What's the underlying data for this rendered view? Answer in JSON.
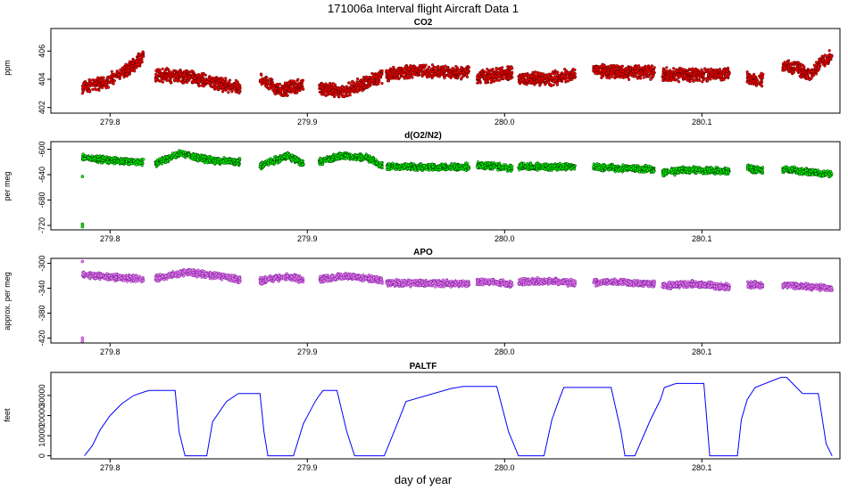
{
  "figure": {
    "title": "171006a   Interval flight Aircraft Data 1",
    "xlabel": "day of year"
  },
  "chart_data": [
    {
      "type": "scatter",
      "title": "CO2",
      "ylabel": "ppm",
      "xlim": [
        279.77,
        280.17
      ],
      "ylim": [
        401.6,
        407.6
      ],
      "yticks": [
        402,
        404,
        406
      ],
      "xticks": [
        279.8,
        279.9,
        280.0,
        280.1
      ],
      "xticklabels": [
        "279.8",
        "279.9",
        "280.0",
        "280.1"
      ],
      "grid": false,
      "colors": {
        "fill": "#ff0000",
        "edge": "#550000"
      },
      "segments": [
        {
          "x": [
            279.786,
            279.798,
            279.808,
            279.817
          ],
          "y": [
            403.5,
            403.8,
            404.6,
            405.6
          ]
        },
        {
          "x": [
            279.823,
            279.84,
            279.858,
            279.866
          ],
          "y": [
            404.3,
            404.2,
            403.6,
            403.4
          ]
        },
        {
          "x": [
            279.876,
            279.886,
            279.898
          ],
          "y": [
            404.0,
            403.2,
            403.6
          ]
        },
        {
          "x": [
            279.906,
            279.918,
            279.93,
            279.938
          ],
          "y": [
            403.4,
            403.1,
            403.8,
            404.2
          ]
        },
        {
          "x": [
            279.94,
            279.955,
            279.97,
            279.982
          ],
          "y": [
            404.3,
            404.6,
            404.5,
            404.5
          ]
        },
        {
          "x": [
            279.986,
            279.996,
            280.004
          ],
          "y": [
            404.1,
            404.3,
            404.5
          ]
        },
        {
          "x": [
            280.007,
            280.02,
            280.036
          ],
          "y": [
            404.1,
            404.0,
            404.3
          ]
        },
        {
          "x": [
            280.045,
            280.06,
            280.076
          ],
          "y": [
            404.6,
            404.5,
            404.5
          ]
        },
        {
          "x": [
            280.08,
            280.1,
            280.114
          ],
          "y": [
            404.3,
            404.3,
            404.4
          ]
        },
        {
          "x": [
            280.123,
            280.127,
            280.131
          ],
          "y": [
            404.1,
            403.9,
            404.0
          ]
        },
        {
          "x": [
            280.141,
            280.148,
            280.155,
            280.16,
            280.166
          ],
          "y": [
            404.9,
            404.8,
            404.2,
            405.2,
            405.7
          ]
        }
      ]
    },
    {
      "type": "scatter",
      "title": "d(O2/N2)",
      "ylabel": "per meg",
      "xlim": [
        279.77,
        280.17
      ],
      "ylim": [
        -727,
        -588
      ],
      "yticks": [
        -600,
        -640,
        -680,
        -720
      ],
      "xticks": [
        279.8,
        279.9,
        280.0,
        280.1
      ],
      "xticklabels": [
        "279.8",
        "279.9",
        "280.0",
        "280.1"
      ],
      "grid": false,
      "colors": {
        "fill": "#00ff00",
        "edge": "#003300"
      },
      "outliers": [
        {
          "x": 279.786,
          "y": -643
        },
        {
          "x": 279.786,
          "y": -718
        },
        {
          "x": 279.786,
          "y": -722
        }
      ],
      "segments": [
        {
          "x": [
            279.786,
            279.8,
            279.817
          ],
          "y": [
            -613,
            -617,
            -621
          ]
        },
        {
          "x": [
            279.823,
            279.836,
            279.85,
            279.866
          ],
          "y": [
            -623,
            -606,
            -617,
            -620
          ]
        },
        {
          "x": [
            279.876,
            279.89,
            279.898
          ],
          "y": [
            -626,
            -610,
            -623
          ]
        },
        {
          "x": [
            279.906,
            279.918,
            279.93,
            279.938
          ],
          "y": [
            -620,
            -610,
            -613,
            -626
          ]
        },
        {
          "x": [
            279.94,
            279.96,
            279.982
          ],
          "y": [
            -627,
            -628,
            -628
          ]
        },
        {
          "x": [
            279.986,
            279.995,
            280.004
          ],
          "y": [
            -625,
            -627,
            -630
          ]
        },
        {
          "x": [
            280.007,
            280.022,
            280.036
          ],
          "y": [
            -627,
            -628,
            -627
          ]
        },
        {
          "x": [
            280.045,
            280.06,
            280.076
          ],
          "y": [
            -628,
            -630,
            -632
          ]
        },
        {
          "x": [
            280.08,
            280.095,
            280.114
          ],
          "y": [
            -637,
            -632,
            -635
          ]
        },
        {
          "x": [
            280.123,
            280.127,
            280.131
          ],
          "y": [
            -630,
            -632,
            -633
          ]
        },
        {
          "x": [
            280.141,
            280.152,
            280.166
          ],
          "y": [
            -632,
            -634,
            -640
          ]
        }
      ]
    },
    {
      "type": "scatter",
      "title": "APO",
      "ylabel": "approx. per meg",
      "xlim": [
        279.77,
        280.17
      ],
      "ylim": [
        -428,
        -292
      ],
      "yticks": [
        -300,
        -340,
        -380,
        -420
      ],
      "xticks": [
        279.8,
        279.9,
        280.0,
        280.1
      ],
      "xticklabels": [
        "279.8",
        "279.9",
        "280.0",
        "280.1"
      ],
      "grid": false,
      "colors": {
        "fill": "#ee82ee",
        "edge": "#7a1fa0"
      },
      "outliers": [
        {
          "x": 279.786,
          "y": -297
        },
        {
          "x": 279.786,
          "y": -420
        },
        {
          "x": 279.786,
          "y": -425
        }
      ],
      "segments": [
        {
          "x": [
            279.786,
            279.8,
            279.817
          ],
          "y": [
            -318,
            -322,
            -325
          ]
        },
        {
          "x": [
            279.823,
            279.838,
            279.855,
            279.866
          ],
          "y": [
            -324,
            -314,
            -320,
            -326
          ]
        },
        {
          "x": [
            279.876,
            279.89,
            279.898
          ],
          "y": [
            -328,
            -322,
            -326
          ]
        },
        {
          "x": [
            279.906,
            279.92,
            279.938
          ],
          "y": [
            -326,
            -320,
            -327
          ]
        },
        {
          "x": [
            279.94,
            279.96,
            279.982
          ],
          "y": [
            -332,
            -332,
            -332
          ]
        },
        {
          "x": [
            279.986,
            279.995,
            280.004
          ],
          "y": [
            -330,
            -330,
            -334
          ]
        },
        {
          "x": [
            280.007,
            280.022,
            280.036
          ],
          "y": [
            -330,
            -328,
            -332
          ]
        },
        {
          "x": [
            280.045,
            280.06,
            280.076
          ],
          "y": [
            -331,
            -330,
            -334
          ]
        },
        {
          "x": [
            280.08,
            280.095,
            280.114
          ],
          "y": [
            -336,
            -333,
            -338
          ]
        },
        {
          "x": [
            280.123,
            280.127,
            280.131
          ],
          "y": [
            -335,
            -334,
            -337
          ]
        },
        {
          "x": [
            280.141,
            280.152,
            280.166
          ],
          "y": [
            -334,
            -337,
            -340
          ]
        }
      ]
    },
    {
      "type": "line",
      "title": "PALTF",
      "ylabel": "feet",
      "xlim": [
        279.77,
        280.17
      ],
      "ylim": [
        -1500,
        41500
      ],
      "yticks": [
        0,
        10000,
        20000,
        30000
      ],
      "xticks": [
        279.8,
        279.9,
        280.0,
        280.1
      ],
      "xticklabels": [
        "279.8",
        "279.9",
        "280.0",
        "280.1"
      ],
      "grid": false,
      "colors": {
        "line": "#0000ff"
      },
      "x": [
        279.787,
        279.791,
        279.795,
        279.8,
        279.806,
        279.812,
        279.818,
        279.82,
        279.826,
        279.833,
        279.835,
        279.838,
        279.842,
        279.849,
        279.852,
        279.859,
        279.865,
        279.868,
        279.871,
        279.876,
        279.878,
        279.88,
        279.887,
        279.893,
        279.898,
        279.904,
        279.906,
        279.908,
        279.909,
        279.915,
        279.92,
        279.924,
        279.934,
        279.939,
        279.946,
        279.95,
        279.973,
        279.979,
        279.986,
        279.991,
        279.993,
        279.996,
        280.002,
        280.007,
        280.011,
        280.02,
        280.024,
        280.028,
        280.03,
        280.037,
        280.04,
        280.047,
        280.05,
        280.054,
        280.059,
        280.061,
        280.063,
        280.066,
        280.074,
        280.079,
        280.081,
        280.087,
        280.093,
        280.101,
        280.104,
        280.108,
        280.118,
        280.12,
        280.123,
        280.127,
        280.14,
        280.143,
        280.151,
        280.159,
        280.16,
        280.163,
        280.166
      ],
      "y": [
        0,
        5000,
        13000,
        20000,
        26000,
        30000,
        32000,
        32500,
        32500,
        32500,
        12000,
        0,
        0,
        0,
        17000,
        27000,
        31000,
        31000,
        31000,
        31000,
        12000,
        0,
        0,
        0,
        16000,
        27000,
        30000,
        32500,
        32500,
        32500,
        12000,
        0,
        0,
        0,
        17000,
        27000,
        33500,
        34500,
        34500,
        34500,
        34500,
        34500,
        12000,
        0,
        0,
        0,
        18000,
        29000,
        34000,
        34000,
        34000,
        34000,
        34000,
        34000,
        12000,
        0,
        0,
        0,
        18000,
        28000,
        34000,
        36000,
        36000,
        36000,
        0,
        0,
        0,
        18000,
        28000,
        34000,
        39000,
        39000,
        31000,
        31000,
        25000,
        6000,
        0
      ]
    }
  ]
}
